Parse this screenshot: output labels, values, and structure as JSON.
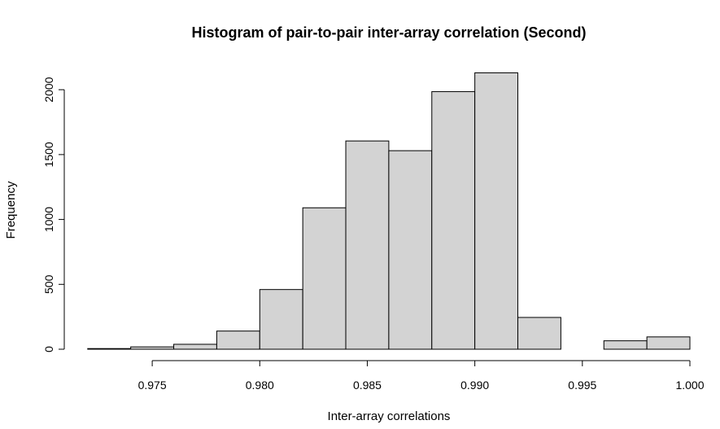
{
  "chart_data": {
    "type": "bar",
    "title": "Histogram of pair-to-pair inter-array correlation (Second)",
    "xlabel": "Inter-array correlations",
    "ylabel": "Frequency",
    "bins": [
      {
        "start": 0.972,
        "end": 0.974,
        "count": 5
      },
      {
        "start": 0.974,
        "end": 0.976,
        "count": 18
      },
      {
        "start": 0.976,
        "end": 0.978,
        "count": 38
      },
      {
        "start": 0.978,
        "end": 0.98,
        "count": 140
      },
      {
        "start": 0.98,
        "end": 0.982,
        "count": 460
      },
      {
        "start": 0.982,
        "end": 0.984,
        "count": 1090
      },
      {
        "start": 0.984,
        "end": 0.986,
        "count": 1605
      },
      {
        "start": 0.986,
        "end": 0.988,
        "count": 1530
      },
      {
        "start": 0.988,
        "end": 0.99,
        "count": 1985
      },
      {
        "start": 0.99,
        "end": 0.992,
        "count": 2130
      },
      {
        "start": 0.992,
        "end": 0.994,
        "count": 245
      },
      {
        "start": 0.994,
        "end": 0.996,
        "count": 0
      },
      {
        "start": 0.996,
        "end": 0.998,
        "count": 65
      },
      {
        "start": 0.998,
        "end": 1.0,
        "count": 95
      }
    ],
    "xlim": [
      0.972,
      1.0
    ],
    "ylim": [
      0,
      2200
    ],
    "x_ticks": [
      0.975,
      0.98,
      0.985,
      0.99,
      0.995,
      1.0
    ],
    "x_tick_labels": [
      "0.975",
      "0.980",
      "0.985",
      "0.990",
      "0.995",
      "1.000"
    ],
    "y_ticks": [
      0,
      500,
      1000,
      1500,
      2000
    ],
    "y_tick_labels": [
      "0",
      "500",
      "1000",
      "1500",
      "2000"
    ],
    "grid": false,
    "bar_fill": "#d3d3d3",
    "bar_stroke": "#000000"
  }
}
